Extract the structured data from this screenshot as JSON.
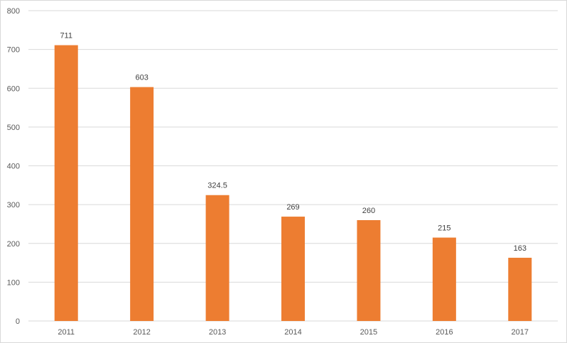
{
  "chart_data": {
    "type": "bar",
    "title": "",
    "xlabel": "",
    "ylabel": "",
    "categories": [
      "2011",
      "2012",
      "2013",
      "2014",
      "2015",
      "2016",
      "2017"
    ],
    "values": [
      711,
      603,
      324.5,
      269,
      260,
      215,
      163
    ],
    "data_labels": [
      "711",
      "603",
      "324.5",
      "269",
      "260",
      "215",
      "163"
    ],
    "ylim": [
      0,
      800
    ],
    "yticks": [
      "0",
      "100",
      "200",
      "300",
      "400",
      "500",
      "600",
      "700",
      "800"
    ],
    "grid": true,
    "legend": "none",
    "bar_color": "#ED7D31",
    "grid_color": "#d9d9d9"
  }
}
